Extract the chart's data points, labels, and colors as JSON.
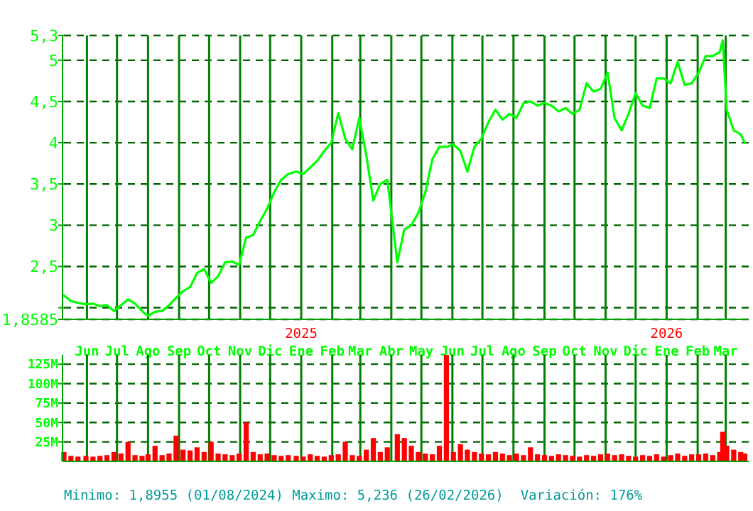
{
  "chart_data": [
    {
      "type": "line",
      "color": "#00ff00",
      "grid": true,
      "x": [
        "2024-05-09",
        "2024-05-16",
        "2024-05-23",
        "2024-05-31",
        "2024-06-07",
        "2024-06-14",
        "2024-06-21",
        "2024-06-28",
        "2024-07-05",
        "2024-07-12",
        "2024-07-19",
        "2024-07-26",
        "2024-08-01",
        "2024-08-08",
        "2024-08-15",
        "2024-08-22",
        "2024-08-29",
        "2024-09-05",
        "2024-09-12",
        "2024-09-19",
        "2024-09-26",
        "2024-10-03",
        "2024-10-10",
        "2024-10-17",
        "2024-10-24",
        "2024-10-31",
        "2024-11-07",
        "2024-11-14",
        "2024-11-21",
        "2024-11-28",
        "2024-12-05",
        "2024-12-12",
        "2024-12-19",
        "2024-12-27",
        "2025-01-03",
        "2025-01-10",
        "2025-01-17",
        "2025-01-24",
        "2025-01-31",
        "2025-02-07",
        "2025-02-14",
        "2025-02-21",
        "2025-02-28",
        "2025-03-07",
        "2025-03-14",
        "2025-03-21",
        "2025-03-28",
        "2025-04-07",
        "2025-04-14",
        "2025-04-21",
        "2025-04-28",
        "2025-05-05",
        "2025-05-12",
        "2025-05-19",
        "2025-05-26",
        "2025-06-02",
        "2025-06-09",
        "2025-06-16",
        "2025-06-23",
        "2025-06-30",
        "2025-07-07",
        "2025-07-14",
        "2025-07-21",
        "2025-07-28",
        "2025-08-04",
        "2025-08-11",
        "2025-08-18",
        "2025-08-25",
        "2025-09-01",
        "2025-09-08",
        "2025-09-15",
        "2025-09-22",
        "2025-09-29",
        "2025-10-06",
        "2025-10-13",
        "2025-10-20",
        "2025-10-27",
        "2025-11-03",
        "2025-11-10",
        "2025-11-17",
        "2025-11-24",
        "2025-12-01",
        "2025-12-08",
        "2025-12-15",
        "2025-12-22",
        "2025-12-29",
        "2026-01-05",
        "2026-01-12",
        "2026-01-19",
        "2026-01-26",
        "2026-02-02",
        "2026-02-09",
        "2026-02-16",
        "2026-02-23",
        "2026-02-26",
        "2026-03-02",
        "2026-03-09",
        "2026-03-16",
        "2026-03-20"
      ],
      "values": [
        2.15,
        2.08,
        2.06,
        2.04,
        2.05,
        2.02,
        2.03,
        1.96,
        2.03,
        2.1,
        2.05,
        1.96,
        1.9,
        1.95,
        1.96,
        2.03,
        2.12,
        2.2,
        2.25,
        2.42,
        2.47,
        2.3,
        2.38,
        2.55,
        2.56,
        2.52,
        2.85,
        2.88,
        3.05,
        3.2,
        3.4,
        3.55,
        3.62,
        3.65,
        3.62,
        3.7,
        3.78,
        3.9,
        4.0,
        4.36,
        4.05,
        3.92,
        4.3,
        3.85,
        3.3,
        3.5,
        3.55,
        2.55,
        2.95,
        3.0,
        3.15,
        3.4,
        3.8,
        3.95,
        3.95,
        3.98,
        3.9,
        3.65,
        3.95,
        4.05,
        4.25,
        4.4,
        4.28,
        4.35,
        4.3,
        4.48,
        4.5,
        4.45,
        4.48,
        4.45,
        4.38,
        4.42,
        4.35,
        4.4,
        4.72,
        4.62,
        4.65,
        4.85,
        4.3,
        4.15,
        4.35,
        4.6,
        4.45,
        4.42,
        4.78,
        4.78,
        4.72,
        4.98,
        4.7,
        4.72,
        4.85,
        5.05,
        5.05,
        5.1,
        5.24,
        4.4,
        4.15,
        4.1,
        4.0
      ],
      "xlim": [
        "2024-05-09",
        "2026-03-24"
      ],
      "xticks": [
        {
          "value": "2024-06-01",
          "label": "Jun"
        },
        {
          "value": "2024-07-01",
          "label": "Jul"
        },
        {
          "value": "2024-08-01",
          "label": "Ago"
        },
        {
          "value": "2024-09-01",
          "label": "Sep"
        },
        {
          "value": "2024-10-01",
          "label": "Oct"
        },
        {
          "value": "2024-11-01",
          "label": "Nov"
        },
        {
          "value": "2024-12-01",
          "label": "Dic"
        },
        {
          "value": "2025-01-01",
          "label": "Ene"
        },
        {
          "value": "2025-02-01",
          "label": "Feb"
        },
        {
          "value": "2025-03-01",
          "label": "Mar"
        },
        {
          "value": "2025-04-01",
          "label": "Abr"
        },
        {
          "value": "2025-05-01",
          "label": "May"
        },
        {
          "value": "2025-06-01",
          "label": "Jun"
        },
        {
          "value": "2025-07-01",
          "label": "Jul"
        },
        {
          "value": "2025-08-01",
          "label": "Ago"
        },
        {
          "value": "2025-09-01",
          "label": "Sep"
        },
        {
          "value": "2025-10-01",
          "label": "Oct"
        },
        {
          "value": "2025-11-01",
          "label": "Nov"
        },
        {
          "value": "2025-12-01",
          "label": "Dic"
        },
        {
          "value": "2026-01-01",
          "label": "Ene"
        },
        {
          "value": "2026-02-01",
          "label": "Feb"
        },
        {
          "value": "2026-03-01",
          "label": "Mar"
        }
      ],
      "ylim": [
        1.8585,
        5.3
      ],
      "yticks": [
        {
          "value": 1.8585,
          "label": "1,8585"
        },
        {
          "value": 2,
          "label": null
        },
        {
          "value": 2.5,
          "label": "2,5"
        },
        {
          "value": 3,
          "label": "3"
        },
        {
          "value": 3.5,
          "label": "3,5"
        },
        {
          "value": 4,
          "label": "4"
        },
        {
          "value": 4.5,
          "label": "4,5"
        },
        {
          "value": 5,
          "label": "5"
        },
        {
          "value": 5.3,
          "label": "5,3"
        }
      ],
      "annotations": [
        "2025",
        "2026",
        "Minimo: 1,8955 (01/08/2024)",
        "Maximo: 5,236 (26/02/2026)",
        "Variación: 176%"
      ]
    },
    {
      "type": "bar",
      "color": "#ff0000",
      "grid": true,
      "tick_labels": "y",
      "xticks": [
        "2024-06-01",
        "2024-07-01",
        "2024-08-01",
        "2024-09-01",
        "2024-10-01",
        "2024-11-01",
        "2024-12-01",
        "2025-01-01",
        "2025-02-01",
        "2025-03-01",
        "2025-04-01",
        "2025-05-01",
        "2025-06-01",
        "2025-07-01",
        "2025-08-01",
        "2025-09-01",
        "2025-10-01",
        "2025-11-01",
        "2025-12-01",
        "2026-01-01",
        "2026-02-01",
        "2026-03-01"
      ],
      "x": [
        "2024-05-09",
        "2024-05-16",
        "2024-05-23",
        "2024-05-31",
        "2024-06-07",
        "2024-06-14",
        "2024-06-21",
        "2024-06-28",
        "2024-07-05",
        "2024-07-12",
        "2024-07-19",
        "2024-07-26",
        "2024-08-01",
        "2024-08-08",
        "2024-08-15",
        "2024-08-22",
        "2024-08-29",
        "2024-09-05",
        "2024-09-12",
        "2024-09-19",
        "2024-09-26",
        "2024-10-03",
        "2024-10-10",
        "2024-10-17",
        "2024-10-24",
        "2024-10-31",
        "2024-11-07",
        "2024-11-14",
        "2024-11-21",
        "2024-11-28",
        "2024-12-05",
        "2024-12-12",
        "2024-12-19",
        "2024-12-27",
        "2025-01-03",
        "2025-01-10",
        "2025-01-17",
        "2025-01-24",
        "2025-01-31",
        "2025-02-07",
        "2025-02-14",
        "2025-02-21",
        "2025-02-28",
        "2025-03-07",
        "2025-03-14",
        "2025-03-21",
        "2025-03-28",
        "2025-04-07",
        "2025-04-14",
        "2025-04-21",
        "2025-04-28",
        "2025-05-05",
        "2025-05-12",
        "2025-05-19",
        "2025-05-26",
        "2025-06-02",
        "2025-06-09",
        "2025-06-16",
        "2025-06-23",
        "2025-06-30",
        "2025-07-07",
        "2025-07-14",
        "2025-07-21",
        "2025-07-28",
        "2025-08-04",
        "2025-08-11",
        "2025-08-18",
        "2025-08-25",
        "2025-09-01",
        "2025-09-08",
        "2025-09-15",
        "2025-09-22",
        "2025-09-29",
        "2025-10-06",
        "2025-10-13",
        "2025-10-20",
        "2025-10-27",
        "2025-11-03",
        "2025-11-10",
        "2025-11-17",
        "2025-11-24",
        "2025-12-01",
        "2025-12-08",
        "2025-12-15",
        "2025-12-22",
        "2025-12-29",
        "2026-01-05",
        "2026-01-12",
        "2026-01-19",
        "2026-01-26",
        "2026-02-02",
        "2026-02-09",
        "2026-02-16",
        "2026-02-23",
        "2026-02-26",
        "2026-03-02",
        "2026-03-09",
        "2026-03-16",
        "2026-03-20"
      ],
      "values": [
        12,
        7,
        6,
        7,
        6,
        7,
        8,
        12,
        10,
        25,
        8,
        7,
        9,
        20,
        8,
        10,
        33,
        15,
        14,
        18,
        12,
        25,
        10,
        9,
        8,
        10,
        50,
        12,
        9,
        10,
        8,
        7,
        8,
        7,
        6,
        9,
        7,
        6,
        8,
        9,
        25,
        8,
        7,
        15,
        30,
        12,
        18,
        35,
        30,
        20,
        12,
        10,
        9,
        20,
        137,
        12,
        22,
        15,
        12,
        10,
        9,
        12,
        10,
        8,
        10,
        8,
        18,
        9,
        8,
        7,
        9,
        8,
        7,
        6,
        8,
        7,
        9,
        10,
        8,
        9,
        7,
        6,
        8,
        7,
        9,
        6,
        8,
        10,
        7,
        9,
        9,
        10,
        8,
        12,
        38,
        20,
        15,
        12,
        10
      ],
      "xlim": [
        "2024-05-09",
        "2026-03-24"
      ],
      "ylim": [
        0,
        137
      ],
      "yticks": [
        {
          "value": 25,
          "label": "25M"
        },
        {
          "value": 50,
          "label": "50M"
        },
        {
          "value": 75,
          "label": "75M"
        },
        {
          "value": 100,
          "label": "100M"
        },
        {
          "value": 125,
          "label": "125M"
        }
      ]
    }
  ]
}
